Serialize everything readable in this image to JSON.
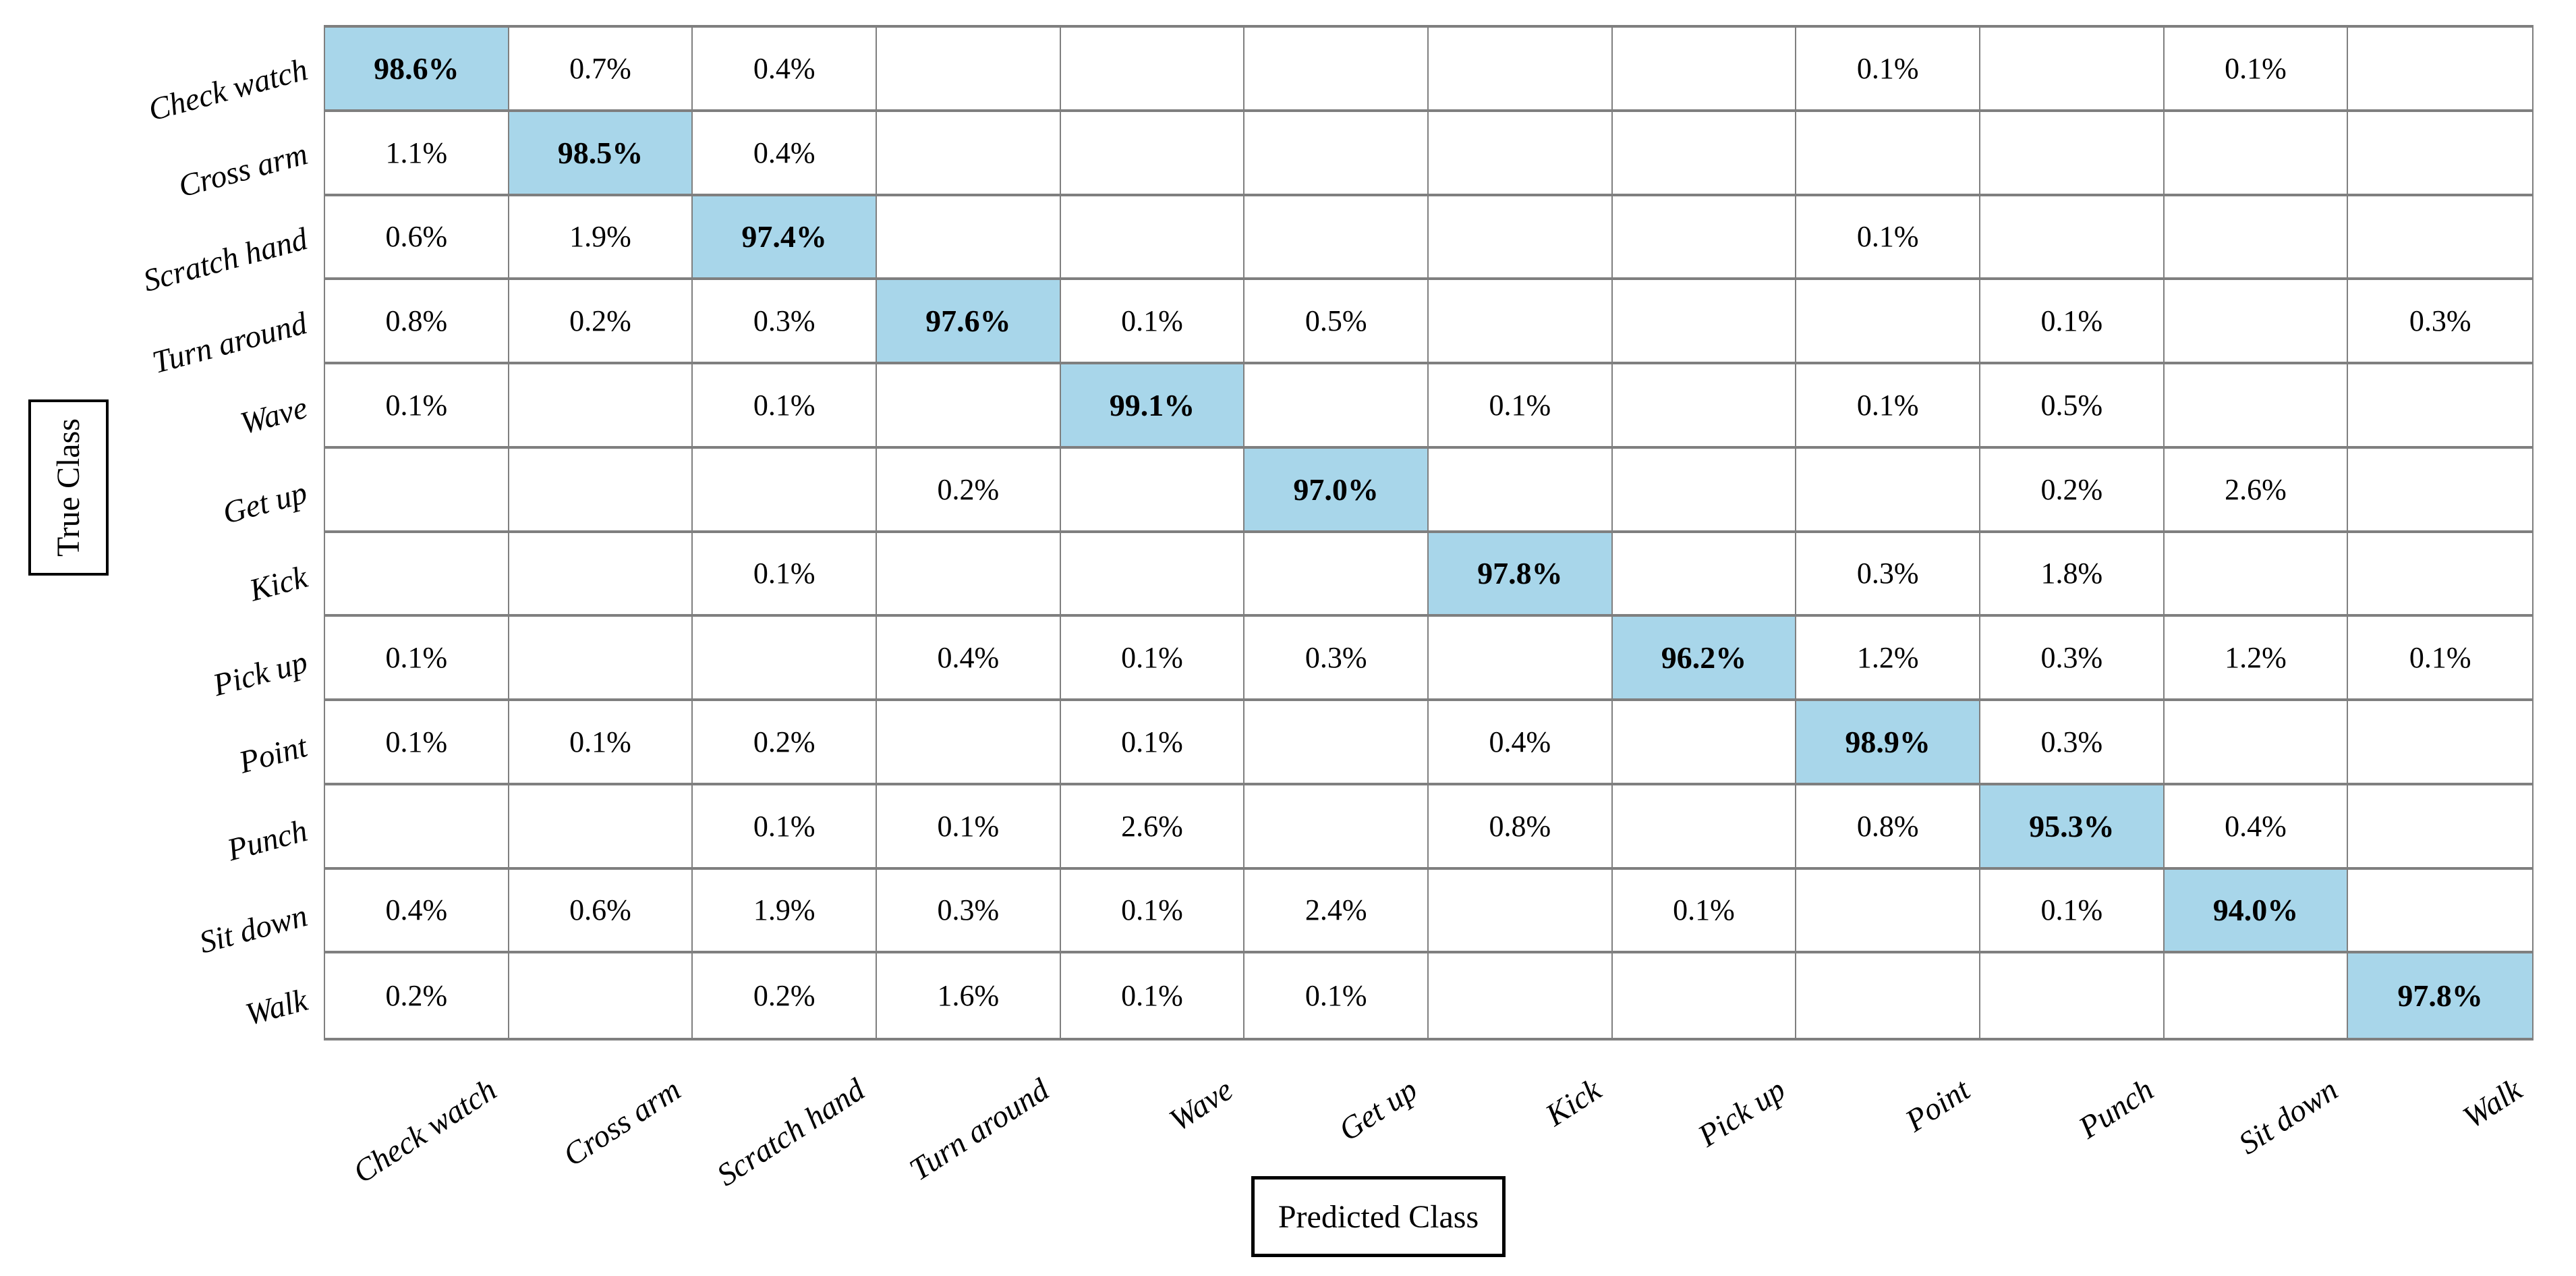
{
  "figure": {
    "kind": "confusion-matrix",
    "x_axis_title": "Predicted Class",
    "y_axis_title": "True Class"
  },
  "colors": {
    "diagonal_fill": "#A8D6EA",
    "grid_line": "#7F7F7F",
    "box_border": "#000000",
    "text": "#000000",
    "background": "#FFFFFF"
  },
  "chart_data": {
    "type": "heatmap",
    "title": "",
    "xlabel": "Predicted Class",
    "ylabel": "True Class",
    "legend_position": "none",
    "grid": true,
    "value_format": "one-decimal-percent",
    "diagonal_highlight_color": "#A8D6EA",
    "categories": [
      "Check watch",
      "Cross arm",
      "Scratch hand",
      "Turn around",
      "Wave",
      "Get up",
      "Kick",
      "Pick up",
      "Point",
      "Punch",
      "Sit down",
      "Walk"
    ],
    "matrix": [
      [
        98.6,
        0.7,
        0.4,
        null,
        null,
        null,
        null,
        null,
        0.1,
        null,
        0.1,
        null
      ],
      [
        1.1,
        98.5,
        0.4,
        null,
        null,
        null,
        null,
        null,
        null,
        null,
        null,
        null
      ],
      [
        0.6,
        1.9,
        97.4,
        null,
        null,
        null,
        null,
        null,
        0.1,
        null,
        null,
        null
      ],
      [
        0.8,
        0.2,
        0.3,
        97.6,
        0.1,
        0.5,
        null,
        null,
        null,
        0.1,
        null,
        0.3
      ],
      [
        0.1,
        null,
        0.1,
        null,
        99.1,
        null,
        0.1,
        null,
        0.1,
        0.5,
        null,
        null
      ],
      [
        null,
        null,
        null,
        0.2,
        null,
        97.0,
        null,
        null,
        null,
        0.2,
        2.6,
        null
      ],
      [
        null,
        null,
        0.1,
        null,
        null,
        null,
        97.8,
        null,
        0.3,
        1.8,
        null,
        null
      ],
      [
        0.1,
        null,
        null,
        0.4,
        0.1,
        0.3,
        null,
        96.2,
        1.2,
        0.3,
        1.2,
        0.1
      ],
      [
        0.1,
        0.1,
        0.2,
        null,
        0.1,
        null,
        0.4,
        null,
        98.9,
        0.3,
        null,
        null
      ],
      [
        null,
        null,
        0.1,
        0.1,
        2.6,
        null,
        0.8,
        null,
        0.8,
        95.3,
        0.4,
        null
      ],
      [
        0.4,
        0.6,
        1.9,
        0.3,
        0.1,
        2.4,
        null,
        0.1,
        null,
        0.1,
        94.0,
        null
      ],
      [
        0.2,
        null,
        0.2,
        1.6,
        0.1,
        0.1,
        null,
        null,
        null,
        null,
        null,
        97.8
      ]
    ]
  }
}
